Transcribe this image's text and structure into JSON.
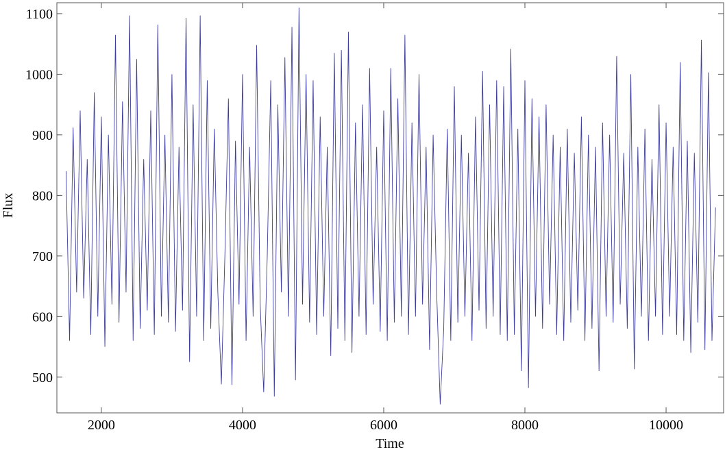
{
  "chart_data": {
    "type": "line",
    "x_label": "Time",
    "y_label": "Flux",
    "xlim": [
      1370,
      10815
    ],
    "ylim": [
      441,
      1118
    ],
    "xticks": [
      2000,
      4000,
      6000,
      8000,
      10000
    ],
    "yticks": [
      500,
      600,
      700,
      800,
      900,
      1000,
      1100
    ],
    "series": [
      {
        "color": "#3d3d9c",
        "x": [
          1500,
          1550,
          1600,
          1650,
          1700,
          1750,
          1800,
          1850,
          1900,
          1950,
          2000,
          2050,
          2100,
          2150,
          2200,
          2250,
          2300,
          2350,
          2400,
          2450,
          2500,
          2550,
          2600,
          2650,
          2700,
          2750,
          2800,
          2850,
          2900,
          2950,
          3000,
          3050,
          3100,
          3150,
          3200,
          3250,
          3300,
          3350,
          3400,
          3450,
          3500,
          3550,
          3600,
          3650,
          3700,
          3750,
          3800,
          3850,
          3900,
          3950,
          4000,
          4050,
          4100,
          4150,
          4200,
          4250,
          4300,
          4350,
          4400,
          4450,
          4500,
          4550,
          4600,
          4650,
          4700,
          4750,
          4800,
          4850,
          4900,
          4950,
          5000,
          5050,
          5100,
          5150,
          5200,
          5250,
          5300,
          5350,
          5400,
          5450,
          5500,
          5550,
          5600,
          5650,
          5700,
          5750,
          5800,
          5850,
          5900,
          5950,
          6000,
          6050,
          6100,
          6150,
          6200,
          6250,
          6300,
          6350,
          6400,
          6450,
          6500,
          6550,
          6600,
          6650,
          6700,
          6750,
          6800,
          6850,
          6900,
          6950,
          7000,
          7050,
          7100,
          7150,
          7200,
          7250,
          7300,
          7350,
          7400,
          7450,
          7500,
          7550,
          7600,
          7650,
          7700,
          7750,
          7800,
          7850,
          7900,
          7950,
          8000,
          8050,
          8100,
          8150,
          8200,
          8250,
          8300,
          8350,
          8400,
          8450,
          8500,
          8550,
          8600,
          8650,
          8700,
          8750,
          8800,
          8850,
          8900,
          8950,
          9000,
          9050,
          9100,
          9150,
          9200,
          9250,
          9300,
          9350,
          9400,
          9450,
          9500,
          9550,
          9600,
          9650,
          9700,
          9750,
          9800,
          9850,
          9900,
          9950,
          10000,
          10050,
          10100,
          10150,
          10200,
          10250,
          10300,
          10350,
          10400,
          10450,
          10500,
          10550,
          10600,
          10650,
          10700
        ],
        "values": [
          840,
          560,
          912,
          640,
          940,
          630,
          860,
          570,
          970,
          600,
          930,
          550,
          900,
          620,
          1065,
          590,
          955,
          640,
          1097,
          560,
          1025,
          580,
          860,
          610,
          940,
          570,
          1082,
          600,
          900,
          590,
          1000,
          575,
          880,
          610,
          1093,
          525,
          950,
          600,
          1097,
          560,
          990,
          580,
          910,
          640,
          488,
          700,
          960,
          487,
          890,
          620,
          1000,
          560,
          880,
          600,
          1048,
          620,
          475,
          700,
          990,
          468,
          950,
          640,
          1028,
          600,
          1078,
          495,
          1110,
          620,
          1000,
          590,
          990,
          570,
          930,
          600,
          880,
          535,
          1035,
          580,
          1040,
          560,
          1070,
          540,
          920,
          600,
          950,
          570,
          1010,
          620,
          880,
          575,
          940,
          560,
          1010,
          590,
          960,
          600,
          1065,
          570,
          920,
          600,
          1000,
          620,
          880,
          545,
          900,
          640,
          455,
          580,
          910,
          560,
          980,
          590,
          900,
          600,
          870,
          560,
          930,
          610,
          1005,
          580,
          950,
          600,
          990,
          570,
          980,
          560,
          1042,
          570,
          910,
          510,
          990,
          482,
          960,
          600,
          930,
          580,
          950,
          620,
          900,
          570,
          880,
          560,
          910,
          590,
          870,
          610,
          930,
          560,
          900,
          580,
          880,
          510,
          920,
          600,
          900,
          590,
          1030,
          620,
          870,
          580,
          1000,
          513,
          880,
          600,
          910,
          560,
          860,
          600,
          950,
          570,
          920,
          600,
          880,
          570,
          1020,
          560,
          890,
          540,
          870,
          590,
          1057,
          545,
          1003,
          560,
          780
        ]
      }
    ]
  }
}
